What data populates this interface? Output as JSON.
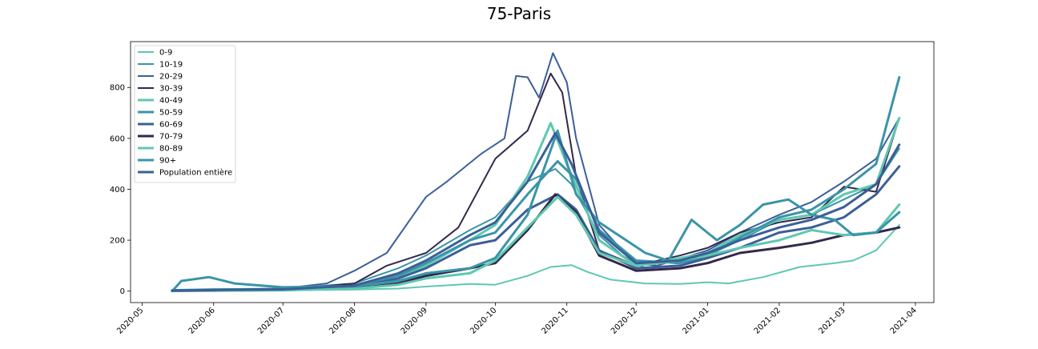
{
  "chart_data": {
    "type": "line",
    "title": "75-Paris",
    "xlabel": "",
    "ylabel": "",
    "x_axis": {
      "type": "date",
      "range": [
        "2020-04-26",
        "2021-04-09"
      ],
      "ticks": [
        "2020-05",
        "2020-06",
        "2020-07",
        "2020-08",
        "2020-09",
        "2020-10",
        "2020-11",
        "2020-12",
        "2021-01",
        "2021-02",
        "2021-03",
        "2021-04"
      ],
      "tick_dates": [
        "2020-05-01",
        "2020-06-01",
        "2020-07-01",
        "2020-08-01",
        "2020-09-01",
        "2020-10-01",
        "2020-11-01",
        "2020-12-01",
        "2021-01-01",
        "2021-02-01",
        "2021-03-01",
        "2021-04-01"
      ]
    },
    "y_axis": {
      "range": [
        -45,
        980
      ],
      "ticks": [
        0,
        200,
        400,
        600,
        800
      ]
    },
    "grid": false,
    "legend_position": "upper-left",
    "series": [
      {
        "name": "0-9",
        "color": "#5ec8b0",
        "points": [
          [
            "2020-05-14",
            0
          ],
          [
            "2020-06-01",
            3
          ],
          [
            "2020-07-01",
            4
          ],
          [
            "2020-08-01",
            6
          ],
          [
            "2020-08-20",
            10
          ],
          [
            "2020-09-01",
            18
          ],
          [
            "2020-09-20",
            28
          ],
          [
            "2020-10-01",
            25
          ],
          [
            "2020-10-15",
            60
          ],
          [
            "2020-10-25",
            95
          ],
          [
            "2020-11-03",
            102
          ],
          [
            "2020-11-10",
            75
          ],
          [
            "2020-11-20",
            45
          ],
          [
            "2020-12-05",
            30
          ],
          [
            "2020-12-20",
            28
          ],
          [
            "2021-01-01",
            35
          ],
          [
            "2021-01-10",
            30
          ],
          [
            "2021-01-25",
            55
          ],
          [
            "2021-02-10",
            95
          ],
          [
            "2021-02-25",
            110
          ],
          [
            "2021-03-05",
            120
          ],
          [
            "2021-03-15",
            160
          ],
          [
            "2021-03-25",
            260
          ]
        ]
      },
      {
        "name": "10-19",
        "color": "#3a94a8",
        "points": [
          [
            "2020-05-14",
            5
          ],
          [
            "2020-06-01",
            8
          ],
          [
            "2020-07-01",
            10
          ],
          [
            "2020-08-01",
            30
          ],
          [
            "2020-08-20",
            90
          ],
          [
            "2020-09-01",
            140
          ],
          [
            "2020-09-20",
            240
          ],
          [
            "2020-10-01",
            290
          ],
          [
            "2020-10-15",
            430
          ],
          [
            "2020-10-27",
            480
          ],
          [
            "2020-11-03",
            420
          ],
          [
            "2020-11-15",
            220
          ],
          [
            "2020-11-25",
            140
          ],
          [
            "2020-12-05",
            90
          ],
          [
            "2020-12-20",
            100
          ],
          [
            "2021-01-01",
            140
          ],
          [
            "2021-01-15",
            200
          ],
          [
            "2021-02-01",
            280
          ],
          [
            "2021-02-15",
            300
          ],
          [
            "2021-03-01",
            360
          ],
          [
            "2021-03-15",
            420
          ],
          [
            "2021-03-25",
            560
          ]
        ]
      },
      {
        "name": "20-29",
        "color": "#3b5f97",
        "points": [
          [
            "2020-05-14",
            3
          ],
          [
            "2020-06-01",
            5
          ],
          [
            "2020-07-01",
            10
          ],
          [
            "2020-07-20",
            30
          ],
          [
            "2020-08-01",
            80
          ],
          [
            "2020-08-15",
            150
          ],
          [
            "2020-09-01",
            370
          ],
          [
            "2020-09-10",
            430
          ],
          [
            "2020-09-25",
            540
          ],
          [
            "2020-10-05",
            600
          ],
          [
            "2020-10-10",
            845
          ],
          [
            "2020-10-15",
            840
          ],
          [
            "2020-10-20",
            760
          ],
          [
            "2020-10-26",
            935
          ],
          [
            "2020-11-01",
            820
          ],
          [
            "2020-11-05",
            600
          ],
          [
            "2020-11-15",
            260
          ],
          [
            "2020-11-30",
            110
          ],
          [
            "2020-12-10",
            100
          ],
          [
            "2021-01-01",
            160
          ],
          [
            "2021-01-15",
            230
          ],
          [
            "2021-02-01",
            300
          ],
          [
            "2021-02-15",
            350
          ],
          [
            "2021-03-01",
            430
          ],
          [
            "2021-03-15",
            520
          ],
          [
            "2021-03-25",
            680
          ]
        ]
      },
      {
        "name": "30-39",
        "color": "#33284c",
        "points": [
          [
            "2020-05-14",
            2
          ],
          [
            "2020-06-01",
            3
          ],
          [
            "2020-07-01",
            6
          ],
          [
            "2020-08-01",
            30
          ],
          [
            "2020-08-15",
            100
          ],
          [
            "2020-09-01",
            150
          ],
          [
            "2020-09-15",
            250
          ],
          [
            "2020-10-01",
            520
          ],
          [
            "2020-10-15",
            630
          ],
          [
            "2020-10-25",
            855
          ],
          [
            "2020-10-30",
            780
          ],
          [
            "2020-11-05",
            450
          ],
          [
            "2020-11-15",
            160
          ],
          [
            "2020-12-01",
            100
          ],
          [
            "2020-12-20",
            140
          ],
          [
            "2021-01-01",
            170
          ],
          [
            "2021-01-15",
            230
          ],
          [
            "2021-02-01",
            270
          ],
          [
            "2021-02-15",
            290
          ],
          [
            "2021-03-01",
            410
          ],
          [
            "2021-03-15",
            390
          ],
          [
            "2021-03-25",
            680
          ]
        ]
      },
      {
        "name": "40-49",
        "color": "#5ec8b0",
        "points": [
          [
            "2020-05-14",
            2
          ],
          [
            "2020-06-01",
            3
          ],
          [
            "2020-07-01",
            6
          ],
          [
            "2020-08-01",
            15
          ],
          [
            "2020-08-20",
            50
          ],
          [
            "2020-09-01",
            100
          ],
          [
            "2020-09-20",
            200
          ],
          [
            "2020-10-01",
            260
          ],
          [
            "2020-10-15",
            450
          ],
          [
            "2020-10-25",
            660
          ],
          [
            "2020-11-01",
            500
          ],
          [
            "2020-11-15",
            200
          ],
          [
            "2020-12-01",
            100
          ],
          [
            "2020-12-20",
            130
          ],
          [
            "2021-01-01",
            150
          ],
          [
            "2021-01-15",
            220
          ],
          [
            "2021-02-01",
            280
          ],
          [
            "2021-02-15",
            300
          ],
          [
            "2021-03-01",
            380
          ],
          [
            "2021-03-15",
            420
          ],
          [
            "2021-03-25",
            680
          ]
        ]
      },
      {
        "name": "50-59",
        "color": "#3a94a8",
        "points": [
          [
            "2020-05-14",
            2
          ],
          [
            "2020-06-01",
            4
          ],
          [
            "2020-07-01",
            6
          ],
          [
            "2020-08-01",
            20
          ],
          [
            "2020-08-20",
            60
          ],
          [
            "2020-09-01",
            110
          ],
          [
            "2020-09-20",
            200
          ],
          [
            "2020-10-01",
            230
          ],
          [
            "2020-10-15",
            380
          ],
          [
            "2020-10-28",
            510
          ],
          [
            "2020-11-05",
            440
          ],
          [
            "2020-11-15",
            240
          ],
          [
            "2020-12-01",
            120
          ],
          [
            "2020-12-20",
            110
          ],
          [
            "2021-01-01",
            140
          ],
          [
            "2021-01-15",
            210
          ],
          [
            "2021-02-01",
            290
          ],
          [
            "2021-02-15",
            320
          ],
          [
            "2021-03-01",
            400
          ],
          [
            "2021-03-15",
            500
          ],
          [
            "2021-03-25",
            840
          ]
        ]
      },
      {
        "name": "60-69",
        "color": "#3b5f97",
        "points": [
          [
            "2020-05-14",
            2
          ],
          [
            "2020-06-01",
            3
          ],
          [
            "2020-07-01",
            5
          ],
          [
            "2020-08-01",
            15
          ],
          [
            "2020-08-20",
            50
          ],
          [
            "2020-09-01",
            90
          ],
          [
            "2020-09-20",
            180
          ],
          [
            "2020-10-01",
            200
          ],
          [
            "2020-10-15",
            320
          ],
          [
            "2020-10-28",
            380
          ],
          [
            "2020-11-05",
            320
          ],
          [
            "2020-11-15",
            160
          ],
          [
            "2020-12-01",
            90
          ],
          [
            "2020-12-20",
            100
          ],
          [
            "2021-01-01",
            130
          ],
          [
            "2021-01-15",
            170
          ],
          [
            "2021-02-01",
            230
          ],
          [
            "2021-02-15",
            250
          ],
          [
            "2021-03-01",
            290
          ],
          [
            "2021-03-15",
            380
          ],
          [
            "2021-03-25",
            490
          ]
        ]
      },
      {
        "name": "70-79",
        "color": "#33284c",
        "points": [
          [
            "2020-05-14",
            1
          ],
          [
            "2020-06-01",
            2
          ],
          [
            "2020-07-01",
            4
          ],
          [
            "2020-08-01",
            10
          ],
          [
            "2020-08-20",
            30
          ],
          [
            "2020-09-01",
            60
          ],
          [
            "2020-09-20",
            90
          ],
          [
            "2020-10-01",
            110
          ],
          [
            "2020-10-15",
            240
          ],
          [
            "2020-10-27",
            380
          ],
          [
            "2020-11-05",
            310
          ],
          [
            "2020-11-15",
            140
          ],
          [
            "2020-12-01",
            80
          ],
          [
            "2020-12-20",
            90
          ],
          [
            "2021-01-01",
            110
          ],
          [
            "2021-01-15",
            150
          ],
          [
            "2021-02-01",
            170
          ],
          [
            "2021-02-15",
            190
          ],
          [
            "2021-03-01",
            220
          ],
          [
            "2021-03-15",
            230
          ],
          [
            "2021-03-25",
            250
          ]
        ]
      },
      {
        "name": "80-89",
        "color": "#5ec8b0",
        "points": [
          [
            "2020-05-14",
            1
          ],
          [
            "2020-06-01",
            2
          ],
          [
            "2020-07-01",
            3
          ],
          [
            "2020-08-01",
            10
          ],
          [
            "2020-08-20",
            25
          ],
          [
            "2020-09-01",
            50
          ],
          [
            "2020-09-20",
            70
          ],
          [
            "2020-10-01",
            120
          ],
          [
            "2020-10-15",
            250
          ],
          [
            "2020-10-28",
            370
          ],
          [
            "2020-11-05",
            300
          ],
          [
            "2020-11-15",
            150
          ],
          [
            "2020-12-01",
            100
          ],
          [
            "2020-12-20",
            120
          ],
          [
            "2021-01-01",
            140
          ],
          [
            "2021-01-15",
            170
          ],
          [
            "2021-02-01",
            200
          ],
          [
            "2021-02-15",
            240
          ],
          [
            "2021-03-01",
            220
          ],
          [
            "2021-03-15",
            230
          ],
          [
            "2021-03-25",
            340
          ]
        ]
      },
      {
        "name": "90+",
        "color": "#3a94a8",
        "points": [
          [
            "2020-05-14",
            0
          ],
          [
            "2020-05-18",
            40
          ],
          [
            "2020-05-30",
            55
          ],
          [
            "2020-06-10",
            30
          ],
          [
            "2020-07-01",
            15
          ],
          [
            "2020-08-01",
            20
          ],
          [
            "2020-08-20",
            40
          ],
          [
            "2020-09-01",
            70
          ],
          [
            "2020-09-20",
            90
          ],
          [
            "2020-10-01",
            130
          ],
          [
            "2020-10-15",
            300
          ],
          [
            "2020-10-28",
            630
          ],
          [
            "2020-11-05",
            380
          ],
          [
            "2020-11-15",
            270
          ],
          [
            "2020-11-25",
            210
          ],
          [
            "2020-12-05",
            150
          ],
          [
            "2020-12-15",
            120
          ],
          [
            "2020-12-25",
            280
          ],
          [
            "2021-01-05",
            200
          ],
          [
            "2021-01-15",
            260
          ],
          [
            "2021-01-25",
            340
          ],
          [
            "2021-02-05",
            360
          ],
          [
            "2021-02-15",
            300
          ],
          [
            "2021-02-25",
            280
          ],
          [
            "2021-03-05",
            220
          ],
          [
            "2021-03-15",
            230
          ],
          [
            "2021-03-25",
            310
          ]
        ]
      },
      {
        "name": "Population entière",
        "color": "#3b5f97",
        "points": [
          [
            "2020-05-14",
            2
          ],
          [
            "2020-06-01",
            4
          ],
          [
            "2020-07-01",
            7
          ],
          [
            "2020-08-01",
            22
          ],
          [
            "2020-08-20",
            70
          ],
          [
            "2020-09-01",
            120
          ],
          [
            "2020-09-20",
            220
          ],
          [
            "2020-10-01",
            270
          ],
          [
            "2020-10-15",
            430
          ],
          [
            "2020-10-27",
            620
          ],
          [
            "2020-11-03",
            500
          ],
          [
            "2020-11-15",
            230
          ],
          [
            "2020-12-01",
            110
          ],
          [
            "2020-12-20",
            120
          ],
          [
            "2021-01-01",
            150
          ],
          [
            "2021-01-15",
            200
          ],
          [
            "2021-02-01",
            250
          ],
          [
            "2021-02-15",
            280
          ],
          [
            "2021-03-01",
            330
          ],
          [
            "2021-03-15",
            420
          ],
          [
            "2021-03-25",
            575
          ]
        ]
      }
    ]
  }
}
